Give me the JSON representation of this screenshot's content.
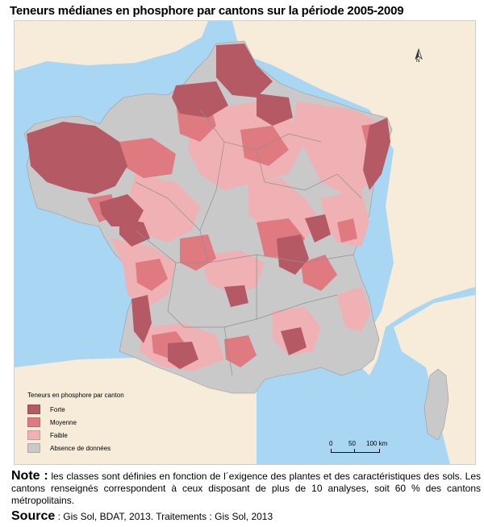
{
  "title": "Teneurs médianes en phosphore par cantons sur la période 2005-2009",
  "legend": {
    "title": "Teneurs en phosphore par canton",
    "items": [
      {
        "label": "Forte",
        "color": "#b55a64"
      },
      {
        "label": "Moyenne",
        "color": "#df7a80"
      },
      {
        "label": "Faible",
        "color": "#efb1b3"
      },
      {
        "label": "Absence de données",
        "color": "#c9c9c9"
      }
    ]
  },
  "scale": {
    "zero": "0",
    "mid": "50",
    "end": "100 km"
  },
  "north_label": "N",
  "note": {
    "prefix": "Note :",
    "text": " les classes sont définies en fonction de l´exigence des plantes et des caractéristiques des sols. Les cantons renseignés correspondent à ceux disposant de plus de 10 analyses, soit 60 % des cantons métropolitains."
  },
  "source": {
    "prefix": "Source",
    "text": " : Gis Sol, BDAT, 2013. Traitements : Gis Sol, 2013"
  },
  "colors": {
    "sea": "#a9d7f3",
    "land_outside": "#f6ecd9",
    "no_data": "#c9c9c9",
    "faible": "#efb1b3",
    "moyenne": "#df7a80",
    "forte": "#b55a64"
  }
}
